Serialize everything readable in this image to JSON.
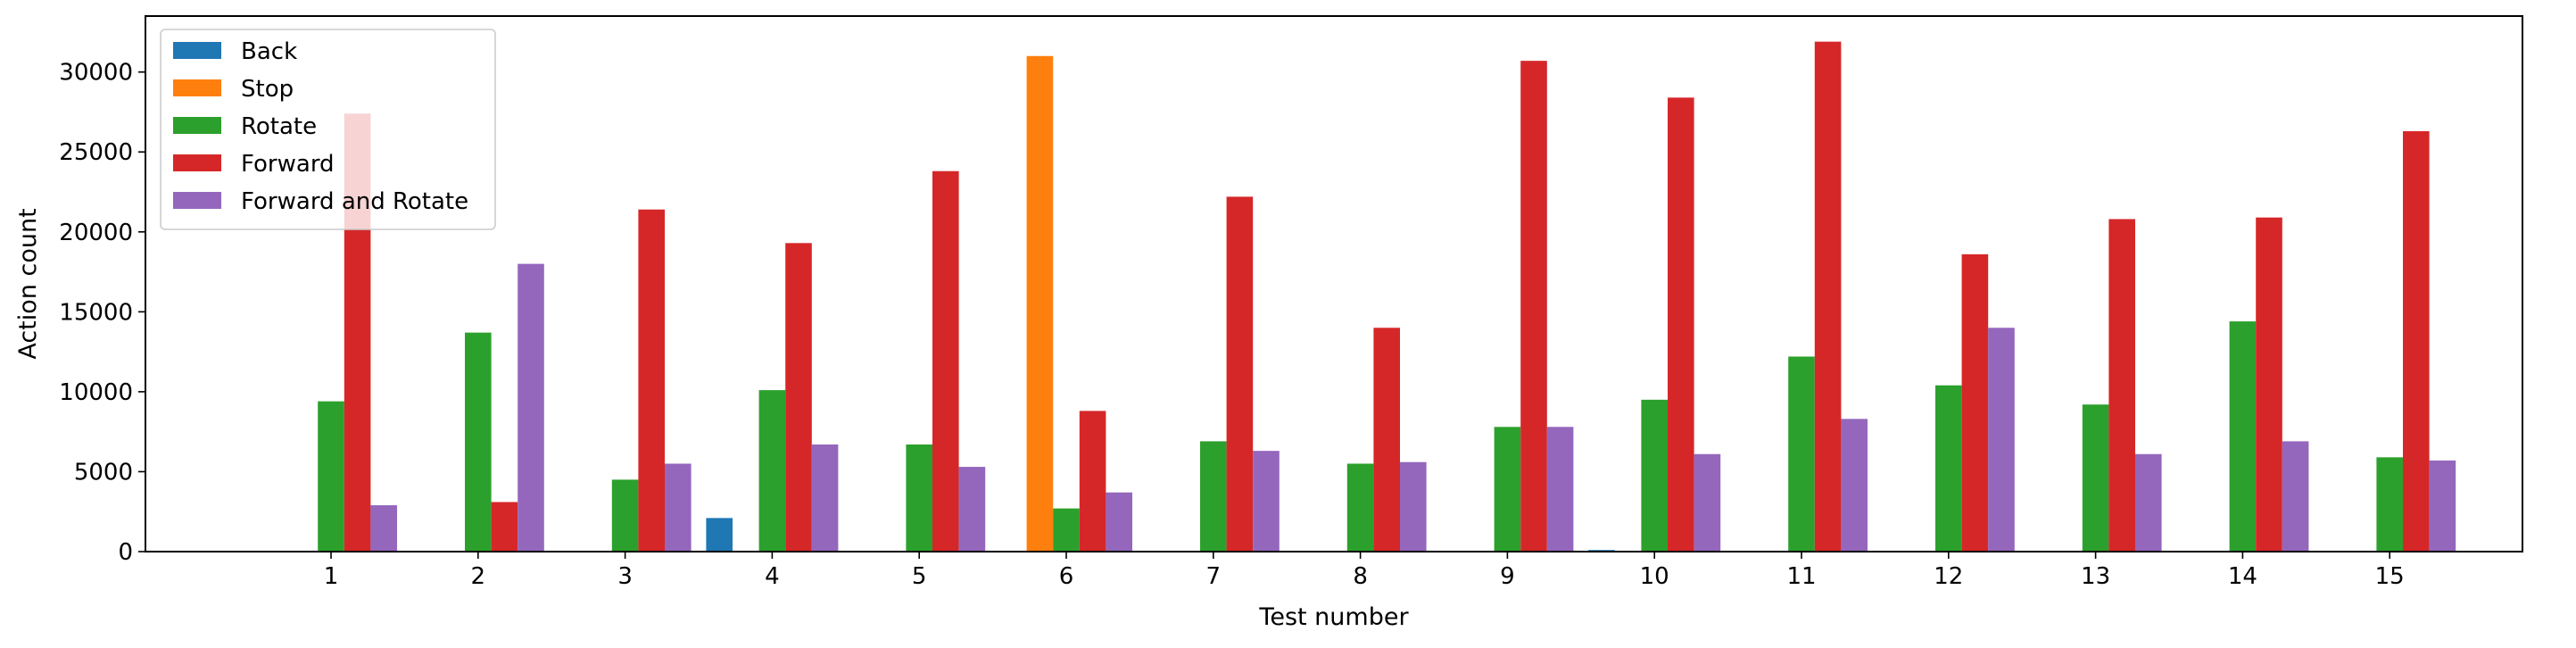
{
  "chart_data": {
    "type": "bar",
    "xlabel": "Test number",
    "ylabel": "Action count",
    "categories": [
      "1",
      "2",
      "3",
      "4",
      "5",
      "6",
      "7",
      "8",
      "9",
      "10",
      "11",
      "12",
      "13",
      "14",
      "15"
    ],
    "ylim": [
      0,
      33500
    ],
    "yticks": [
      0,
      5000,
      10000,
      15000,
      20000,
      25000,
      30000
    ],
    "ytick_labels": [
      "0",
      "5000",
      "10000",
      "15000",
      "20000",
      "25000",
      "30000"
    ],
    "legend_position": "top-left",
    "grid": false,
    "series": [
      {
        "name": "Back",
        "color": "#1f77b4",
        "values": [
          0,
          0,
          0,
          2100,
          0,
          0,
          0,
          0,
          0,
          100,
          0,
          0,
          0,
          0,
          0
        ]
      },
      {
        "name": "Stop",
        "color": "#ff7f0e",
        "values": [
          0,
          0,
          0,
          0,
          0,
          31000,
          0,
          0,
          0,
          0,
          0,
          0,
          0,
          0,
          0
        ]
      },
      {
        "name": "Rotate",
        "color": "#2ca02c",
        "values": [
          9400,
          13700,
          4500,
          10100,
          6700,
          2700,
          6900,
          5500,
          7800,
          9500,
          12200,
          10400,
          9200,
          14400,
          5900
        ]
      },
      {
        "name": "Forward",
        "color": "#d62728",
        "values": [
          27400,
          3100,
          21400,
          19300,
          23800,
          8800,
          22200,
          14000,
          30700,
          28400,
          31900,
          18600,
          20800,
          20900,
          26300
        ]
      },
      {
        "name": "Forward and Rotate",
        "color": "#9467bd",
        "values": [
          2900,
          18000,
          5500,
          6700,
          5300,
          3700,
          6300,
          5600,
          7800,
          6100,
          8300,
          14000,
          6100,
          6900,
          5700
        ]
      }
    ]
  }
}
